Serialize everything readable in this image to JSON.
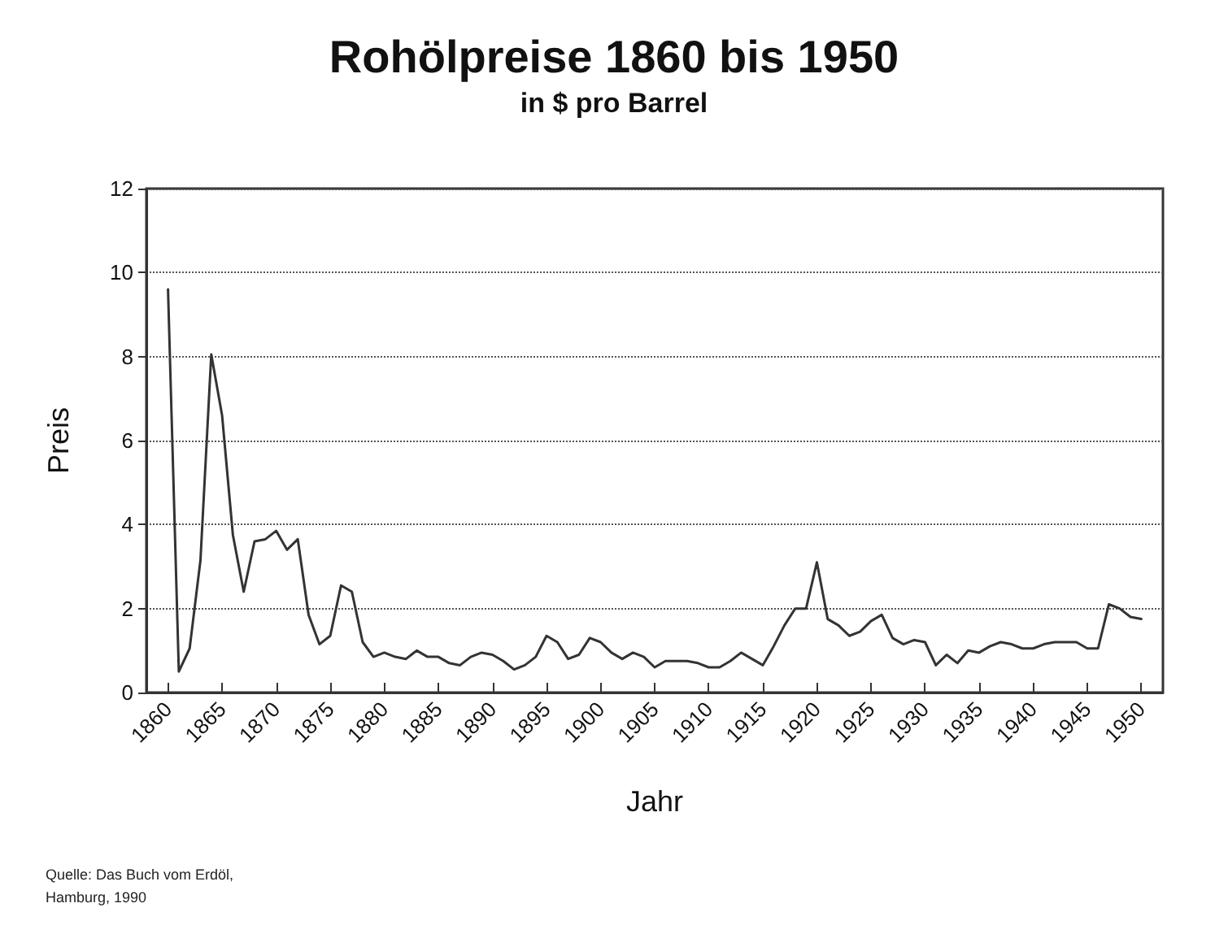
{
  "chart_data": {
    "type": "line",
    "title": "Rohölpreise 1860 bis 1950",
    "subtitle": "in $ pro Barrel",
    "xlabel": "Jahr",
    "ylabel": "Preis",
    "x": [
      1860,
      1861,
      1862,
      1863,
      1864,
      1865,
      1866,
      1867,
      1868,
      1869,
      1870,
      1871,
      1872,
      1873,
      1874,
      1875,
      1876,
      1877,
      1878,
      1879,
      1880,
      1881,
      1882,
      1883,
      1884,
      1885,
      1886,
      1887,
      1888,
      1889,
      1890,
      1891,
      1892,
      1893,
      1894,
      1895,
      1896,
      1897,
      1898,
      1899,
      1900,
      1901,
      1902,
      1903,
      1904,
      1905,
      1906,
      1907,
      1908,
      1909,
      1910,
      1911,
      1912,
      1913,
      1914,
      1915,
      1916,
      1917,
      1918,
      1919,
      1920,
      1921,
      1922,
      1923,
      1924,
      1925,
      1926,
      1927,
      1928,
      1929,
      1930,
      1931,
      1932,
      1933,
      1934,
      1935,
      1936,
      1937,
      1938,
      1939,
      1940,
      1941,
      1942,
      1943,
      1944,
      1945,
      1946,
      1947,
      1948,
      1949,
      1950
    ],
    "values": [
      9.6,
      0.5,
      1.05,
      3.15,
      8.05,
      6.6,
      3.75,
      2.4,
      3.6,
      3.65,
      3.85,
      3.4,
      3.65,
      1.85,
      1.15,
      1.35,
      2.55,
      2.4,
      1.2,
      0.85,
      0.95,
      0.85,
      0.8,
      1.0,
      0.85,
      0.85,
      0.7,
      0.65,
      0.85,
      0.95,
      0.9,
      0.75,
      0.55,
      0.65,
      0.85,
      1.35,
      1.2,
      0.8,
      0.9,
      1.3,
      1.2,
      0.95,
      0.8,
      0.95,
      0.85,
      0.6,
      0.75,
      0.75,
      0.75,
      0.7,
      0.6,
      0.6,
      0.75,
      0.95,
      0.8,
      0.65,
      1.1,
      1.6,
      2.0,
      2.0,
      3.1,
      1.75,
      1.6,
      1.35,
      1.45,
      1.7,
      1.85,
      1.3,
      1.15,
      1.25,
      1.2,
      0.65,
      0.9,
      0.7,
      1.0,
      0.95,
      1.1,
      1.2,
      1.15,
      1.05,
      1.05,
      1.15,
      1.2,
      1.2,
      1.2,
      1.05,
      1.05,
      2.1,
      2.0,
      1.8,
      1.75
    ],
    "color": "#333333",
    "marker": "none",
    "line_style": "solid",
    "xlim": [
      1858,
      1952
    ],
    "xticks": [
      1860,
      1865,
      1870,
      1875,
      1880,
      1885,
      1890,
      1895,
      1900,
      1905,
      1910,
      1915,
      1920,
      1925,
      1930,
      1935,
      1940,
      1945,
      1950
    ],
    "ylim": [
      0,
      12
    ],
    "yticks": [
      0,
      2,
      4,
      6,
      8,
      10,
      12
    ],
    "grid": "y",
    "annotations": [
      "Quelle: Das Buch vom Erdöl,\nHamburg, 1990"
    ]
  }
}
